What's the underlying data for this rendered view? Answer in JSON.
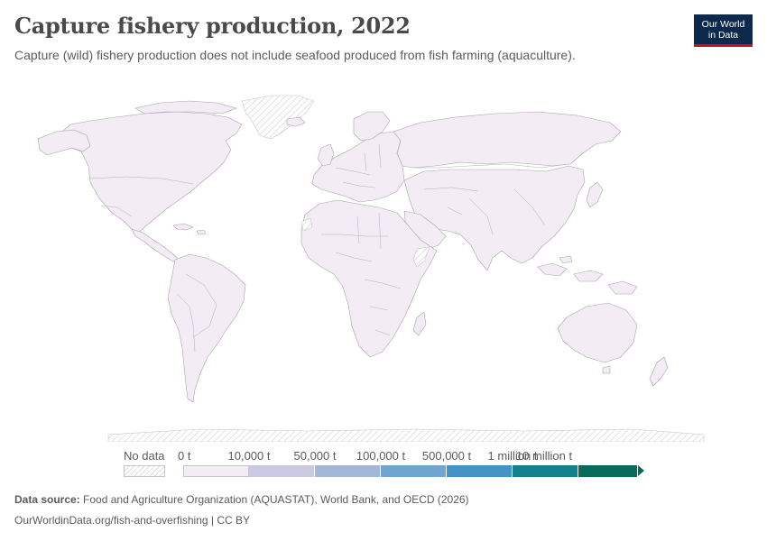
{
  "header": {
    "title": "Capture fishery production, 2022",
    "subtitle": "Capture (wild) fishery production does not include seafood produced from fish farming (aquaculture).",
    "logo_line1": "Our World",
    "logo_line2": "in Data"
  },
  "map": {
    "region": "World",
    "base_fill": "#f3ecf5",
    "no_data_regions": [
      "Greenland",
      "Antarctica",
      "Western Sahara",
      "Somalia"
    ]
  },
  "legend": {
    "no_data_label": "No data",
    "bins": [
      {
        "label": "0 t",
        "color": "#f3ecf5"
      },
      {
        "label": "10,000 t",
        "color": "#cbc8e2"
      },
      {
        "label": "50,000 t",
        "color": "#a3b7d9"
      },
      {
        "label": "100,000 t",
        "color": "#6fa6d0"
      },
      {
        "label": "500,000 t",
        "color": "#4593c5"
      },
      {
        "label": "1 million t",
        "color": "#14828d"
      },
      {
        "label": "10 million t",
        "color": "#0b6b5b"
      }
    ]
  },
  "footer": {
    "source_label": "Data source:",
    "source_text": " Food and Agriculture Organization (AQUASTAT), World Bank, and OECD (2026)",
    "url": "OurWorldinData.org/fish-and-overfishing | CC BY"
  }
}
